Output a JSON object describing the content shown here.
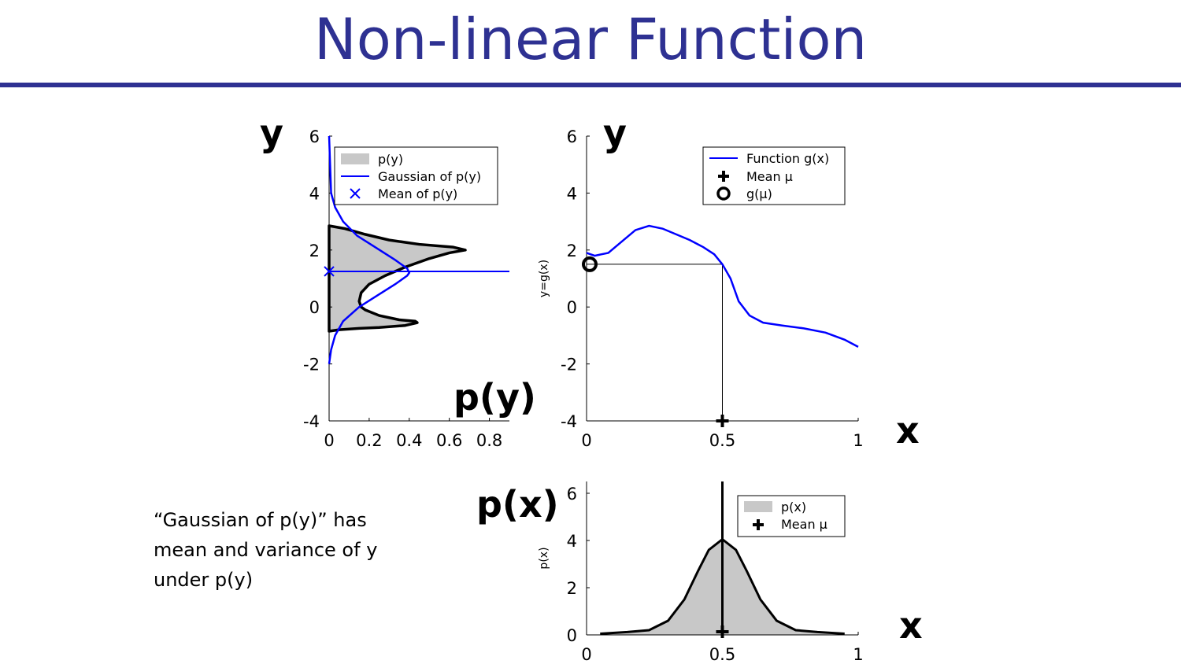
{
  "slide": {
    "title": "Non-linear Function",
    "note": "“Gaussian of p(y)” has mean and variance of y under p(y)",
    "labels": {
      "py_y": "y",
      "py_label": "p(y)",
      "g_y": "y",
      "g_x": "x",
      "px_label": "p(x)",
      "px_x": "x"
    }
  },
  "colors": {
    "title": "#2e3192",
    "blue": "#0000ff",
    "fill": "#c8c8c8"
  },
  "chart_data": [
    {
      "type": "area",
      "id": "py",
      "xlim": [
        0,
        0.9
      ],
      "ylim": [
        -4,
        6
      ],
      "xticks": [
        0,
        0.2,
        0.4,
        0.6,
        0.8
      ],
      "xtick_labels": [
        "0",
        "0.2",
        "0.4",
        "0.6",
        "0.8"
      ],
      "yticks": [
        -4,
        -2,
        0,
        2,
        4,
        6
      ],
      "ytick_labels": [
        "-4",
        "-2",
        "0",
        "2",
        "4",
        "6"
      ],
      "legend": [
        "p(y)",
        "Gaussian of p(y)",
        "Mean of p(y)"
      ],
      "legend_position": "top-right",
      "series": [
        {
          "name": "p(y)",
          "style": "filled-black",
          "points": [
            [
              0,
              -0.85
            ],
            [
              0.05,
              -0.8
            ],
            [
              0.15,
              -0.75
            ],
            [
              0.25,
              -0.72
            ],
            [
              0.38,
              -0.65
            ],
            [
              0.44,
              -0.55
            ],
            [
              0.43,
              -0.5
            ],
            [
              0.35,
              -0.45
            ],
            [
              0.25,
              -0.3
            ],
            [
              0.18,
              -0.1
            ],
            [
              0.16,
              0
            ],
            [
              0.15,
              0.2
            ],
            [
              0.16,
              0.5
            ],
            [
              0.2,
              0.8
            ],
            [
              0.28,
              1.1
            ],
            [
              0.38,
              1.4
            ],
            [
              0.5,
              1.7
            ],
            [
              0.6,
              1.9
            ],
            [
              0.68,
              2.0
            ],
            [
              0.62,
              2.1
            ],
            [
              0.45,
              2.2
            ],
            [
              0.3,
              2.35
            ],
            [
              0.18,
              2.55
            ],
            [
              0.08,
              2.75
            ],
            [
              0,
              2.85
            ]
          ]
        },
        {
          "name": "Gaussian of p(y)",
          "style": "blue-line",
          "points": [
            [
              0,
              -2.0
            ],
            [
              0.01,
              -1.5
            ],
            [
              0.03,
              -1.0
            ],
            [
              0.07,
              -0.5
            ],
            [
              0.15,
              0
            ],
            [
              0.24,
              0.4
            ],
            [
              0.33,
              0.8
            ],
            [
              0.39,
              1.1
            ],
            [
              0.4,
              1.2
            ],
            [
              0.39,
              1.35
            ],
            [
              0.33,
              1.65
            ],
            [
              0.23,
              2.1
            ],
            [
              0.14,
              2.5
            ],
            [
              0.07,
              3.0
            ],
            [
              0.03,
              3.5
            ],
            [
              0.01,
              4.0
            ],
            [
              0,
              6.0
            ]
          ]
        },
        {
          "name": "Mean of p(y)",
          "style": "blue-x",
          "points": [
            [
              0,
              1.25
            ]
          ]
        }
      ],
      "mean_line_y": 1.25
    },
    {
      "type": "line",
      "id": "g",
      "xlim": [
        0,
        1
      ],
      "ylim": [
        -4,
        6
      ],
      "xticks": [
        0,
        0.5,
        1
      ],
      "xtick_labels": [
        "0",
        "0.5",
        "1"
      ],
      "yticks": [
        -4,
        -2,
        0,
        2,
        4,
        6
      ],
      "ytick_labels": [
        "-4",
        "-2",
        "0",
        "2",
        "4",
        "6"
      ],
      "ylabel": "y=g(x)",
      "legend": [
        "Function g(x)",
        "Mean μ",
        "g(μ)"
      ],
      "legend_position": "top-right",
      "series": [
        {
          "name": "Function g(x)",
          "points": [
            [
              0,
              1.9
            ],
            [
              0.03,
              1.8
            ],
            [
              0.08,
              1.9
            ],
            [
              0.13,
              2.3
            ],
            [
              0.18,
              2.7
            ],
            [
              0.23,
              2.85
            ],
            [
              0.28,
              2.75
            ],
            [
              0.33,
              2.55
            ],
            [
              0.38,
              2.35
            ],
            [
              0.43,
              2.1
            ],
            [
              0.47,
              1.85
            ],
            [
              0.5,
              1.5
            ],
            [
              0.53,
              1.0
            ],
            [
              0.56,
              0.2
            ],
            [
              0.6,
              -0.3
            ],
            [
              0.65,
              -0.55
            ],
            [
              0.72,
              -0.65
            ],
            [
              0.8,
              -0.75
            ],
            [
              0.88,
              -0.9
            ],
            [
              0.95,
              -1.15
            ],
            [
              1,
              -1.4
            ]
          ]
        }
      ],
      "mean": 0.5,
      "g_mean": 1.5
    },
    {
      "type": "area",
      "id": "px",
      "xlim": [
        0,
        1
      ],
      "ylim": [
        0,
        6.5
      ],
      "xticks": [
        0,
        0.5,
        1
      ],
      "xtick_labels": [
        "0",
        "0.5",
        "1"
      ],
      "yticks": [
        0,
        2,
        4,
        6
      ],
      "ytick_labels": [
        "0",
        "2",
        "4",
        "6"
      ],
      "ylabel": "p(x)",
      "legend": [
        "p(x)",
        "Mean μ"
      ],
      "legend_position": "top-right",
      "series": [
        {
          "name": "p(x)",
          "points": [
            [
              0.05,
              0.05
            ],
            [
              0.15,
              0.12
            ],
            [
              0.23,
              0.2
            ],
            [
              0.3,
              0.6
            ],
            [
              0.36,
              1.5
            ],
            [
              0.41,
              2.7
            ],
            [
              0.45,
              3.6
            ],
            [
              0.5,
              4.05
            ],
            [
              0.55,
              3.6
            ],
            [
              0.59,
              2.7
            ],
            [
              0.64,
              1.5
            ],
            [
              0.7,
              0.6
            ],
            [
              0.77,
              0.2
            ],
            [
              0.85,
              0.12
            ],
            [
              0.95,
              0.05
            ]
          ]
        }
      ],
      "mean": 0.5
    }
  ]
}
